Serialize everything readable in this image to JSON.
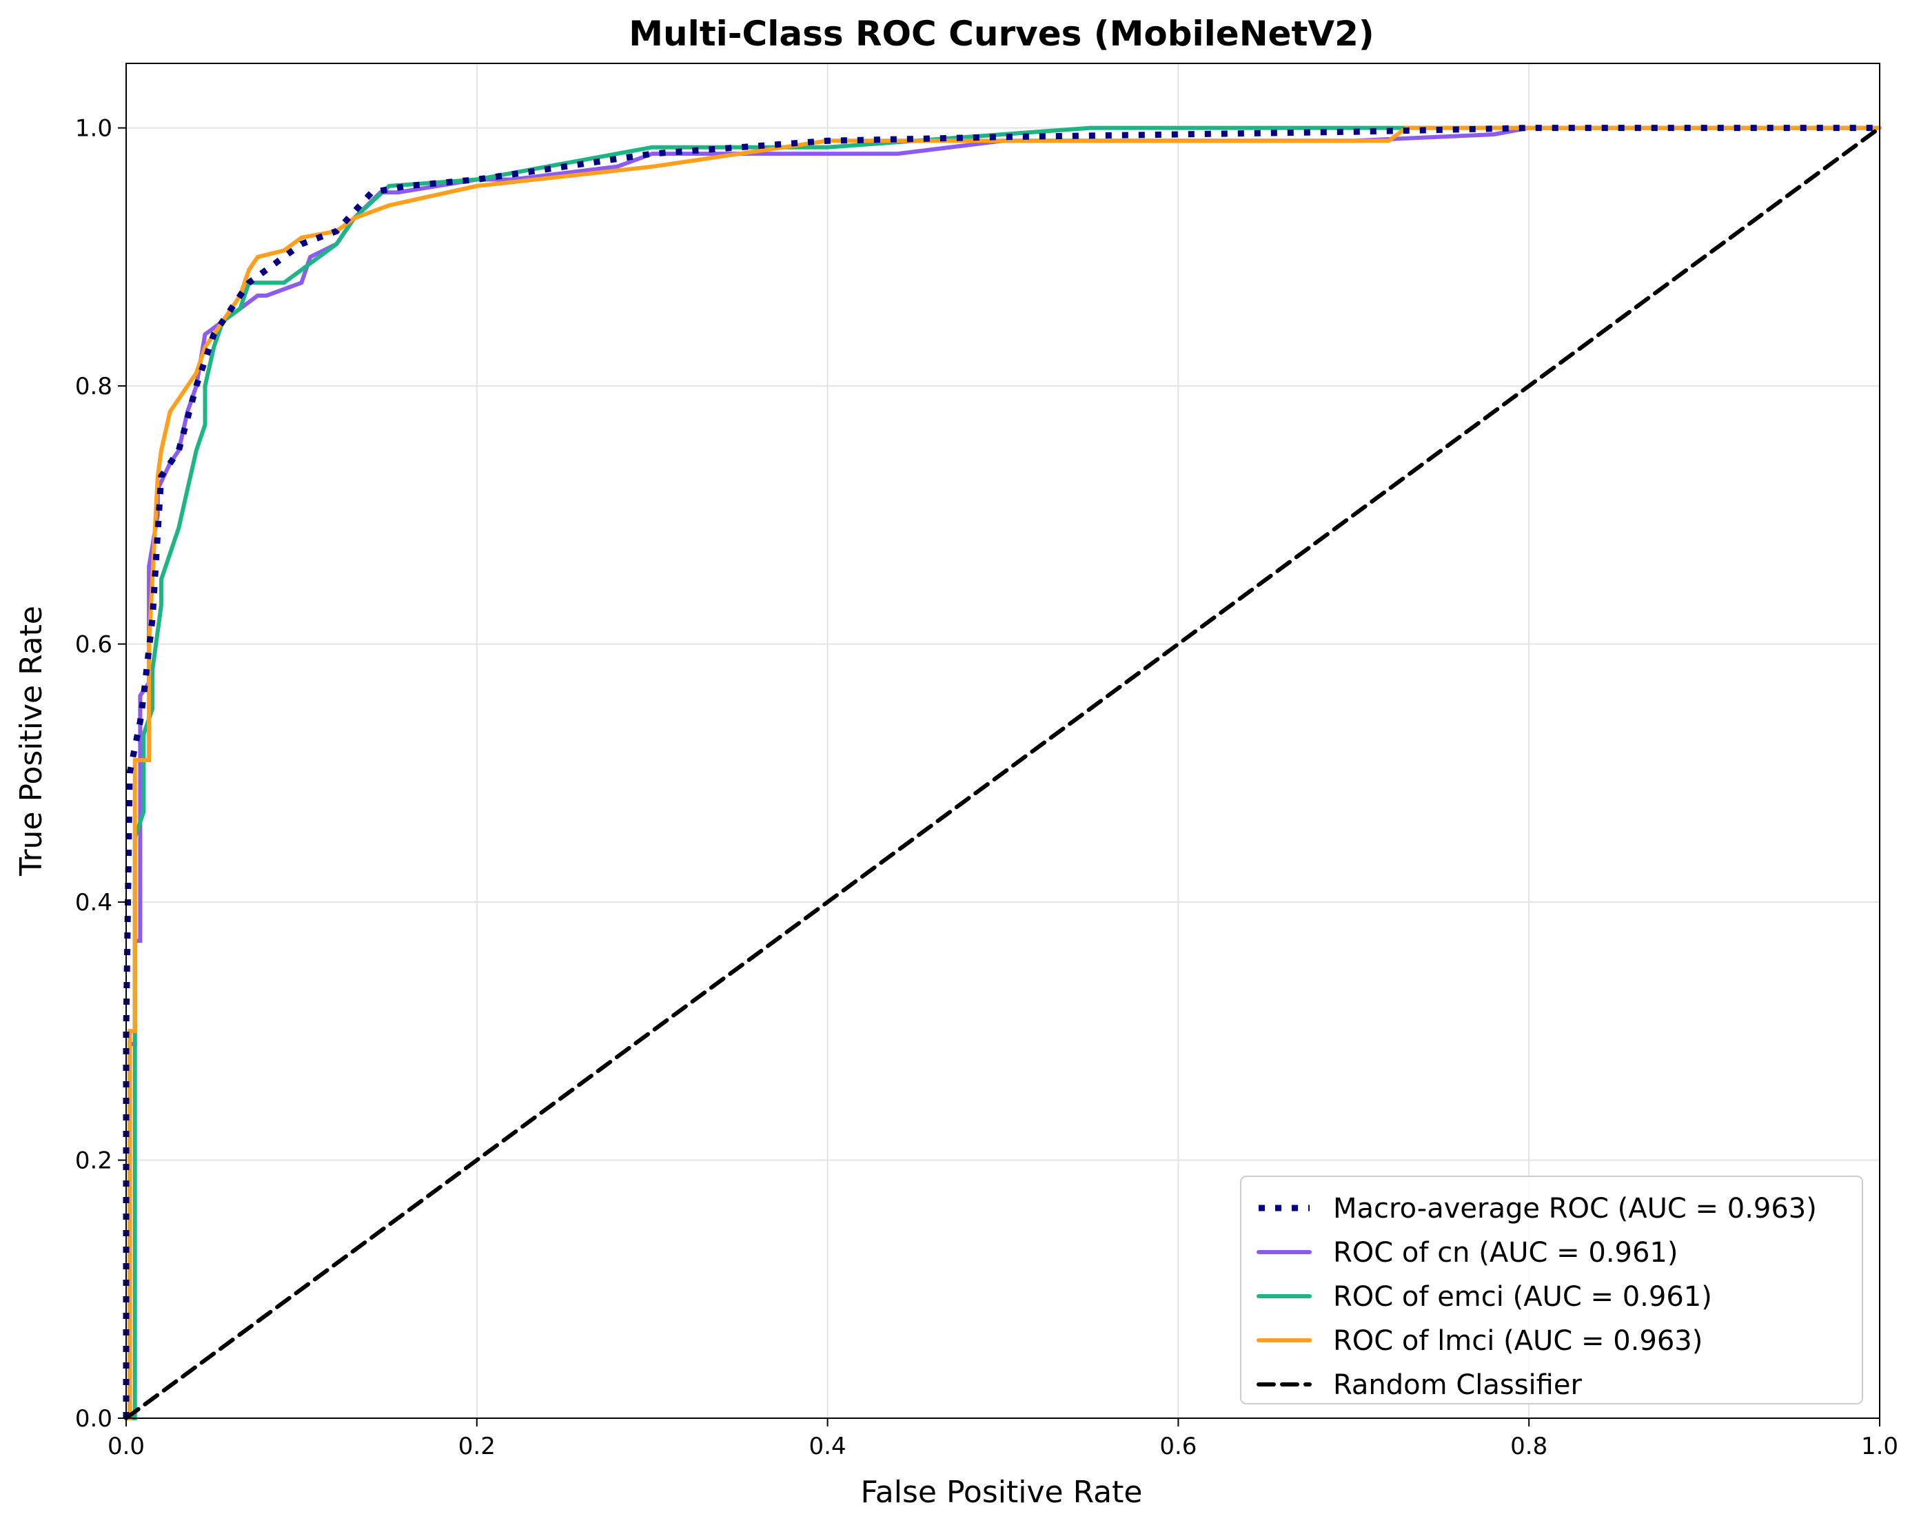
{
  "chart_data": {
    "type": "line",
    "title": "Multi-Class ROC Curves (MobileNetV2)",
    "xlabel": "False Positive Rate",
    "ylabel": "True Positive Rate",
    "xlim": [
      0.0,
      1.0
    ],
    "ylim": [
      0.0,
      1.05
    ],
    "xticks": [
      0.0,
      0.2,
      0.4,
      0.6,
      0.8,
      1.0
    ],
    "yticks": [
      0.0,
      0.2,
      0.4,
      0.6,
      0.8,
      1.0
    ],
    "xtick_labels": [
      "0.0",
      "0.2",
      "0.4",
      "0.6",
      "0.8",
      "1.0"
    ],
    "ytick_labels": [
      "0.0",
      "0.2",
      "0.4",
      "0.6",
      "0.8",
      "1.0"
    ],
    "grid": true,
    "legend_position": "lower-right",
    "series": [
      {
        "name": "Macro-average ROC (AUC = 0.963)",
        "color": "#000080",
        "style": "dotted",
        "x": [
          0,
          0,
          0.002,
          0.005,
          0.008,
          0.01,
          0.015,
          0.02,
          0.03,
          0.04,
          0.05,
          0.06,
          0.07,
          0.08,
          0.1,
          0.12,
          0.14,
          0.16,
          0.2,
          0.25,
          0.3,
          0.35,
          0.4,
          0.5,
          0.6,
          0.7,
          0.8,
          0.9,
          1.0
        ],
        "y": [
          0,
          0.3,
          0.5,
          0.52,
          0.54,
          0.56,
          0.62,
          0.73,
          0.75,
          0.8,
          0.84,
          0.86,
          0.88,
          0.89,
          0.91,
          0.92,
          0.95,
          0.955,
          0.96,
          0.97,
          0.98,
          0.985,
          0.99,
          0.993,
          0.995,
          0.997,
          1.0,
          1.0,
          1.0
        ]
      },
      {
        "name": "ROC of cn (AUC = 0.961)",
        "color": "#8c5cf0",
        "style": "solid",
        "x": [
          0,
          0.002,
          0.002,
          0.005,
          0.005,
          0.008,
          0.008,
          0.013,
          0.013,
          0.018,
          0.018,
          0.025,
          0.03,
          0.035,
          0.04,
          0.045,
          0.045,
          0.055,
          0.065,
          0.075,
          0.08,
          0.1,
          0.105,
          0.12,
          0.13,
          0.145,
          0.155,
          0.2,
          0.22,
          0.28,
          0.3,
          0.4,
          0.44,
          0.5,
          0.6,
          0.7,
          0.78,
          0.8,
          1.0
        ],
        "y": [
          0,
          0,
          0.29,
          0.29,
          0.37,
          0.37,
          0.56,
          0.57,
          0.66,
          0.7,
          0.72,
          0.74,
          0.75,
          0.78,
          0.8,
          0.84,
          0.84,
          0.85,
          0.86,
          0.87,
          0.87,
          0.88,
          0.9,
          0.91,
          0.93,
          0.95,
          0.95,
          0.96,
          0.96,
          0.97,
          0.98,
          0.98,
          0.98,
          0.99,
          0.99,
          0.99,
          0.995,
          1.0,
          1.0
        ]
      },
      {
        "name": "ROC of emci (AUC = 0.961)",
        "color": "#1db584",
        "style": "solid",
        "x": [
          0,
          0.005,
          0.005,
          0.01,
          0.01,
          0.015,
          0.015,
          0.02,
          0.02,
          0.025,
          0.03,
          0.035,
          0.04,
          0.045,
          0.045,
          0.05,
          0.055,
          0.065,
          0.07,
          0.075,
          0.09,
          0.1,
          0.12,
          0.13,
          0.15,
          0.2,
          0.3,
          0.4,
          0.55,
          0.74,
          0.8,
          1.0
        ],
        "y": [
          0,
          0,
          0.45,
          0.47,
          0.53,
          0.55,
          0.58,
          0.63,
          0.65,
          0.67,
          0.69,
          0.72,
          0.75,
          0.77,
          0.8,
          0.83,
          0.85,
          0.86,
          0.88,
          0.88,
          0.88,
          0.89,
          0.91,
          0.93,
          0.955,
          0.96,
          0.985,
          0.985,
          1.0,
          1.0,
          1.0,
          1.0
        ]
      },
      {
        "name": "ROC of lmci (AUC = 0.963)",
        "color": "#ff9f1c",
        "style": "solid",
        "x": [
          0,
          0.002,
          0.002,
          0.005,
          0.005,
          0.013,
          0.013,
          0.018,
          0.02,
          0.025,
          0.03,
          0.035,
          0.04,
          0.045,
          0.05,
          0.055,
          0.065,
          0.07,
          0.075,
          0.09,
          0.1,
          0.12,
          0.13,
          0.15,
          0.2,
          0.3,
          0.4,
          0.6,
          0.72,
          0.73,
          0.8,
          1.0
        ],
        "y": [
          0,
          0,
          0.3,
          0.3,
          0.51,
          0.51,
          0.6,
          0.73,
          0.75,
          0.78,
          0.79,
          0.8,
          0.81,
          0.83,
          0.84,
          0.85,
          0.87,
          0.89,
          0.9,
          0.905,
          0.915,
          0.92,
          0.93,
          0.94,
          0.955,
          0.97,
          0.99,
          0.99,
          0.99,
          1.0,
          1.0,
          1.0
        ]
      },
      {
        "name": "Random Classifier",
        "color": "#000000",
        "style": "dashed",
        "x": [
          0,
          1
        ],
        "y": [
          0,
          1
        ]
      }
    ]
  }
}
